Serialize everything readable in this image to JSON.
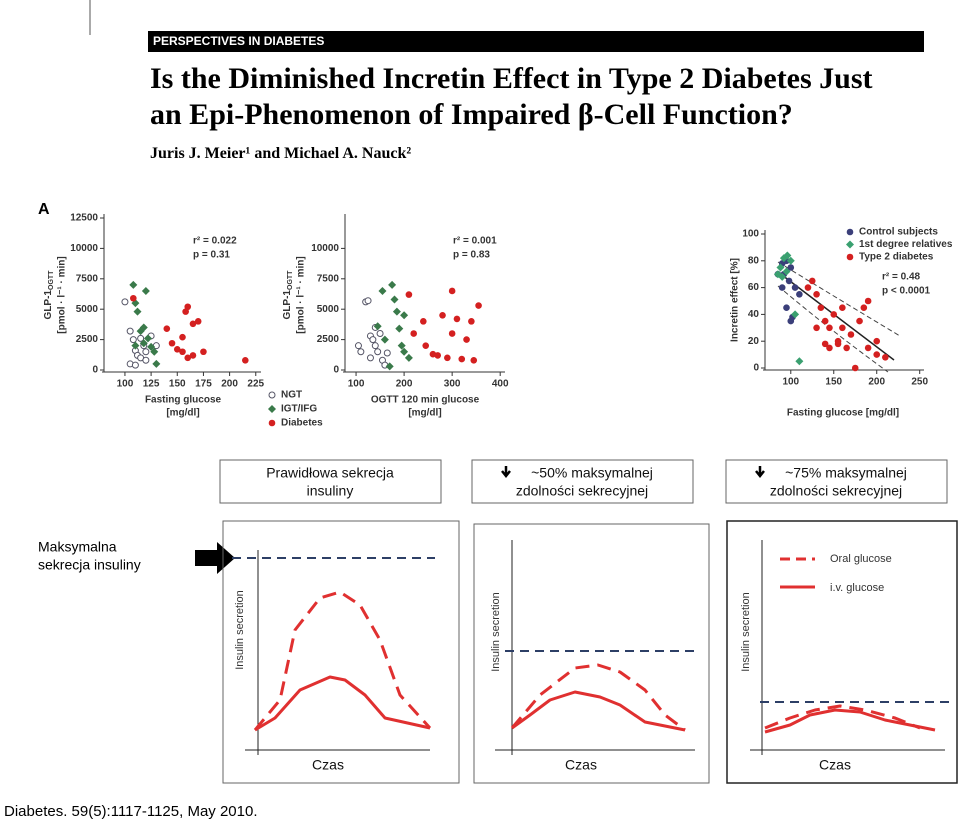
{
  "header": {
    "banner": "PERSPECTIVES IN DIABETES",
    "title": [
      "Is the Diminished Incretin Effect in Type 2 Diabetes Just",
      "an Epi-Phenomenon of Impaired β-Cell Function?"
    ],
    "authors": "Juris J. Meier¹ and Michael A. Nauck²"
  },
  "figure_label": "A",
  "chart_data": [
    {
      "type": "scatter",
      "ylabel": [
        "GLP-1",
        "OGTT",
        "[pmol · l⁻¹ · min]"
      ],
      "xlabel": [
        "Fasting glucose",
        "[mg/dl]"
      ],
      "annotations": [
        "r² = 0.022",
        "p = 0.31"
      ],
      "xlim": [
        80,
        230
      ],
      "xticks": [
        100,
        125,
        150,
        175,
        200,
        225
      ],
      "ylim": [
        0,
        12500
      ],
      "yticks": [
        0,
        2500,
        5000,
        7500,
        10000,
        12500
      ],
      "legend": "below",
      "series": [
        {
          "name": "NGT",
          "color": "#555566",
          "marker": "open-circle",
          "x": [
            100,
            105,
            108,
            110,
            112,
            115,
            118,
            120,
            125,
            105,
            110,
            115,
            120,
            130
          ],
          "values": [
            5600,
            3200,
            2500,
            1600,
            1200,
            2600,
            2000,
            1500,
            2800,
            500,
            400,
            1000,
            800,
            2000
          ]
        },
        {
          "name": "IGT/IFG",
          "color": "#3a7a4a",
          "marker": "diamond",
          "x": [
            108,
            110,
            112,
            118,
            120,
            122,
            125,
            128,
            130,
            115,
            110,
            118
          ],
          "values": [
            7000,
            5500,
            4800,
            3500,
            6500,
            2600,
            1900,
            1500,
            500,
            3200,
            2000,
            2200
          ]
        },
        {
          "name": "Diabetes",
          "color": "#d42020",
          "marker": "circle",
          "x": [
            108,
            145,
            150,
            155,
            160,
            158,
            165,
            170,
            175,
            165,
            160,
            215,
            140,
            155
          ],
          "values": [
            5900,
            2200,
            1700,
            1500,
            5200,
            4800,
            3800,
            4000,
            1500,
            1200,
            1000,
            800,
            3400,
            2700
          ]
        }
      ]
    },
    {
      "type": "scatter",
      "ylabel": [
        "GLP-1",
        "OGTT",
        "[pmol · l⁻¹ · min]"
      ],
      "xlabel": [
        "OGTT 120 min glucose",
        "[mg/dl]"
      ],
      "annotations": [
        "r² = 0.001",
        "p = 0.83"
      ],
      "xlim": [
        77,
        410
      ],
      "xticks": [
        100,
        200,
        300,
        400
      ],
      "ylim": [
        0,
        12500
      ],
      "yticks": [
        0,
        2500,
        5000,
        7500,
        10000
      ],
      "series": [
        {
          "color": "#555566",
          "marker": "open-circle",
          "x": [
            105,
            110,
            120,
            125,
            130,
            135,
            140,
            145,
            150,
            155,
            160,
            165,
            130,
            140
          ],
          "values": [
            2000,
            1500,
            5600,
            5700,
            2800,
            2500,
            2000,
            1500,
            3000,
            800,
            400,
            1400,
            1000,
            3500
          ]
        },
        {
          "color": "#3a7a4a",
          "marker": "diamond",
          "x": [
            145,
            155,
            175,
            180,
            185,
            190,
            195,
            200,
            210,
            160,
            170,
            200
          ],
          "values": [
            3600,
            6500,
            7000,
            5800,
            4800,
            3400,
            2000,
            1500,
            1000,
            2500,
            300,
            4500
          ]
        },
        {
          "color": "#d42020",
          "marker": "circle",
          "x": [
            210,
            220,
            240,
            245,
            260,
            270,
            290,
            300,
            310,
            320,
            330,
            340,
            345,
            355,
            300,
            280
          ],
          "values": [
            6200,
            3000,
            4000,
            2000,
            1300,
            1200,
            1000,
            3000,
            4200,
            900,
            2500,
            4000,
            800,
            5300,
            6500,
            4500
          ]
        }
      ]
    },
    {
      "type": "scatter",
      "ylabel": [
        "Incretin effect [%]"
      ],
      "xlabel": [
        "Fasting glucose [mg/dl]"
      ],
      "annotations": [
        "r² = 0.48",
        "p < 0.0001"
      ],
      "xlim": [
        70,
        255
      ],
      "xticks": [
        100,
        150,
        200,
        250
      ],
      "ylim": [
        0,
        100
      ],
      "yticks": [
        0,
        20,
        40,
        60,
        80,
        100
      ],
      "legend": "upper right",
      "series": [
        {
          "name": "Control subjects",
          "color": "#3b3f7a",
          "marker": "circle",
          "x": [
            90,
            95,
            100,
            92,
            98,
            105,
            90,
            95,
            100,
            85,
            110,
            102
          ],
          "values": [
            78,
            80,
            75,
            70,
            65,
            60,
            60,
            45,
            35,
            70,
            55,
            38
          ]
        },
        {
          "name": "1st degree relatives",
          "color": "#3aa070",
          "marker": "diamond",
          "x": [
            85,
            88,
            92,
            96,
            100,
            90,
            95,
            105,
            110
          ],
          "values": [
            70,
            75,
            82,
            84,
            80,
            68,
            72,
            40,
            5
          ]
        },
        {
          "name": "Type 2 diabetes",
          "color": "#d42020",
          "marker": "circle",
          "x": [
            120,
            130,
            125,
            135,
            140,
            150,
            145,
            155,
            160,
            165,
            170,
            180,
            185,
            190,
            200,
            200,
            210,
            175,
            130,
            140,
            160,
            190,
            145,
            155
          ],
          "values": [
            60,
            55,
            65,
            45,
            35,
            40,
            30,
            20,
            30,
            15,
            25,
            35,
            45,
            15,
            10,
            20,
            8,
            0,
            30,
            18,
            45,
            50,
            15,
            18
          ]
        }
      ]
    }
  ],
  "scheme": {
    "max_label": [
      "Maksymalna",
      "sekrecja insuliny"
    ],
    "panels": [
      {
        "heading": [
          "Prawidłowa sekrecja",
          "insuliny"
        ],
        "ylabel": "Insulin secretion",
        "xlabel": "Czas"
      },
      {
        "heading": [
          "~50% maksymalnej",
          "zdolności sekrecyjnej"
        ],
        "ylabel": "Insulin secretion",
        "xlabel": "Czas"
      },
      {
        "heading": [
          "~75% maksymalnej",
          "zdolności sekrecyjnej"
        ],
        "ylabel": "Insulin secretion",
        "xlabel": "Czas"
      }
    ],
    "legend": [
      "Oral glucose",
      "i.v. glucose"
    ]
  },
  "citation": "Diabetes. 59(5):1117-1125, May 2010."
}
